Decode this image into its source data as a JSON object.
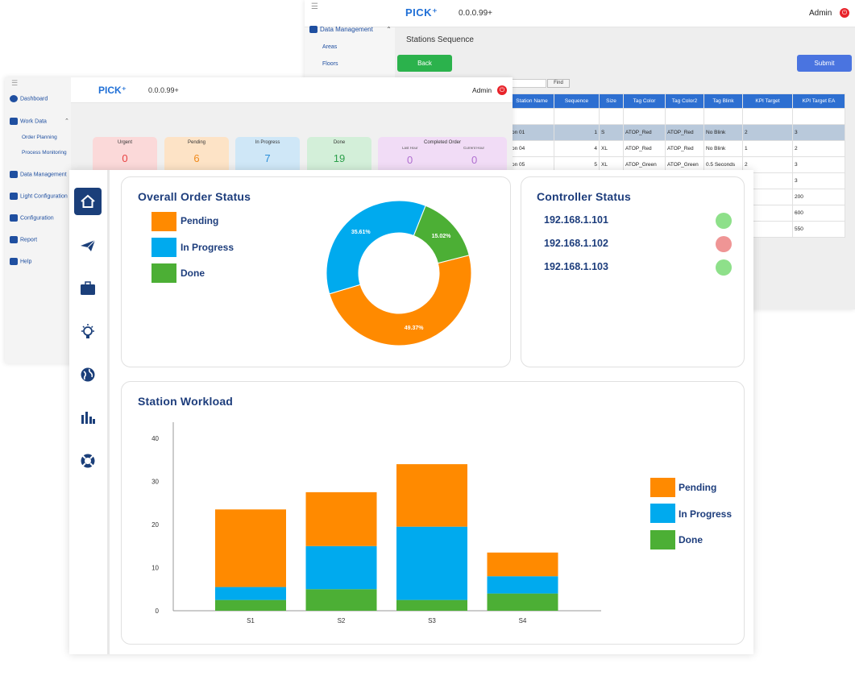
{
  "back_window": {
    "version": "0.0.0.99+",
    "logo": "PICK⁺",
    "user": "Admin",
    "nav": {
      "data_management": "Data Management",
      "areas": "Areas",
      "floors": "Floors"
    },
    "page_title": "Stations Sequence",
    "back_label": "Back",
    "submit_label": "Submit",
    "find_label": "Find",
    "columns": [
      "Station Name",
      "Sequence",
      "Size",
      "Tag Color",
      "Tag Color2",
      "Tag Blink",
      "KPI Target",
      "KPI Target EA"
    ],
    "rows": [
      [
        "on 01",
        "1",
        "S",
        "ATOP_Red",
        "ATOP_Red",
        "No Blink",
        "2",
        "3"
      ],
      [
        "on 04",
        "4",
        "XL",
        "ATOP_Red",
        "ATOP_Red",
        "No Blink",
        "1",
        "2"
      ],
      [
        "on 05",
        "5",
        "XL",
        "ATOP_Green",
        "ATOP_Green",
        "0.5 Seconds",
        "2",
        "3"
      ],
      [
        "",
        "",
        "",
        "",
        "",
        "",
        "",
        "3"
      ],
      [
        "",
        "",
        "",
        "",
        "",
        "",
        "00",
        "200"
      ],
      [
        "",
        "",
        "",
        "",
        "",
        "",
        "00",
        "600"
      ],
      [
        "",
        "",
        "",
        "",
        "",
        "",
        "00",
        "550"
      ]
    ]
  },
  "mid_window": {
    "logo": "PICK⁺",
    "version": "0.0.0.99+",
    "user": "Admin",
    "nav": {
      "dashboard": "Dashboard",
      "work_data": "Work Data",
      "order_planning": "Order Planning",
      "process_monitoring": "Process Monitoring",
      "data_management": "Data Management",
      "light_configuration": "Light Configuration",
      "configuration": "Configuration",
      "report": "Report",
      "help": "Help"
    },
    "tiles": {
      "urgent": {
        "label": "Urgent",
        "value": "0"
      },
      "pending": {
        "label": "Pending",
        "value": "6"
      },
      "in_progress": {
        "label": "In Progress",
        "value": "7"
      },
      "done": {
        "label": "Done",
        "value": "19"
      },
      "completed": {
        "label": "Completed Order",
        "last_hour": "Last Hour",
        "current_hour": "Current Hour",
        "last_value": "0",
        "current_value": "0"
      }
    }
  },
  "front_window": {
    "rail_icons": [
      "home-icon",
      "paper-plane-icon",
      "briefcase-icon",
      "lightbulb-icon",
      "globe-icon",
      "bar-chart-icon",
      "lifebuoy-icon"
    ],
    "order_status": {
      "title": "Overall Order Status",
      "legend": [
        "Pending",
        "In Progress",
        "Done"
      ]
    },
    "controller_status": {
      "title": "Controller Status",
      "controllers": [
        {
          "ip": "192.168.1.101",
          "status_color": "#8ee08a"
        },
        {
          "ip": "192.168.1.102",
          "status_color": "#ef9595"
        },
        {
          "ip": "192.168.1.103",
          "status_color": "#8ee08a"
        }
      ]
    },
    "workload": {
      "title": "Station Workload",
      "legend": [
        "Pending",
        "In Progress",
        "Done"
      ]
    }
  },
  "colors": {
    "pending": "#ff8a00",
    "in_progress": "#00aaee",
    "done": "#4caf35"
  },
  "chart_data": [
    {
      "type": "pie",
      "title": "Overall Order Status",
      "categories": [
        "Pending",
        "In Progress",
        "Done"
      ],
      "values": [
        49.37,
        35.61,
        15.02
      ],
      "labels": [
        "49.37%",
        "35.61%",
        "15.02%"
      ]
    },
    {
      "type": "bar",
      "stacked": true,
      "title": "Station Workload",
      "categories": [
        "S1",
        "S2",
        "S3",
        "S4"
      ],
      "series": [
        {
          "name": "Done",
          "values": [
            2.5,
            5,
            2.5,
            4
          ]
        },
        {
          "name": "In Progress",
          "values": [
            3,
            10,
            17,
            4
          ]
        },
        {
          "name": "Pending",
          "values": [
            18,
            12.5,
            14.5,
            5.5
          ]
        }
      ],
      "ylim": [
        0,
        40
      ],
      "yticks": [
        0,
        10,
        20,
        30,
        40
      ]
    }
  ]
}
